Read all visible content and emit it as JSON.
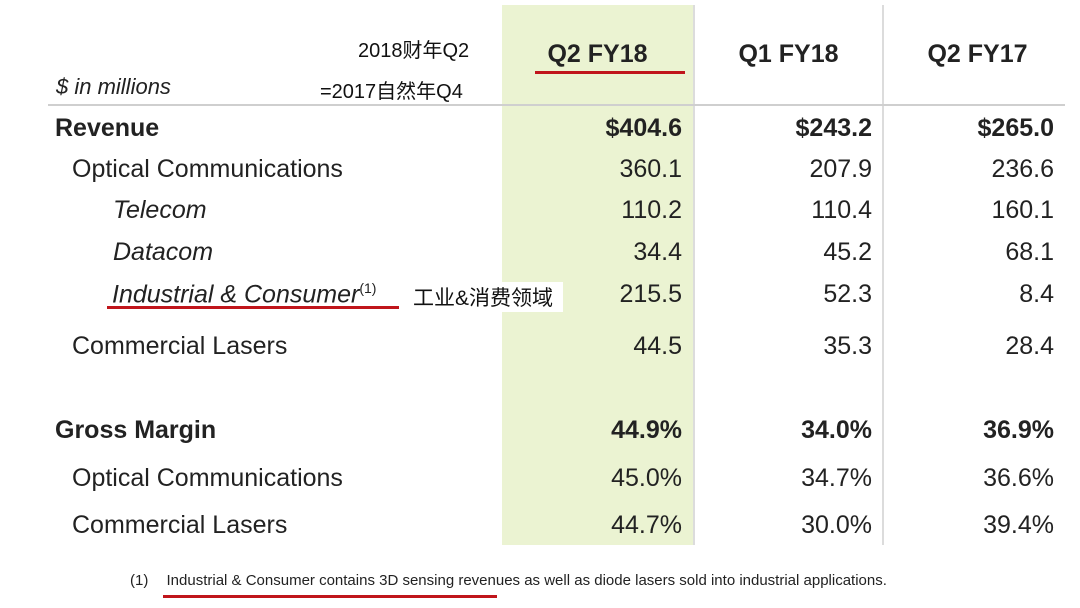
{
  "annotation_top": "2018财年Q2",
  "annotation_bottom": "=2017自然年Q4",
  "unit_label": "$ in millions",
  "columns": [
    "Q2 FY18",
    "Q1 FY18",
    "Q2 FY17"
  ],
  "rows": [
    {
      "label": "Revenue",
      "values": [
        "$404.6",
        "$243.2",
        "$265.0"
      ]
    },
    {
      "label": "Optical Communications",
      "values": [
        "360.1",
        "207.9",
        "236.6"
      ]
    },
    {
      "label": "Telecom",
      "values": [
        "110.2",
        "110.4",
        "160.1"
      ]
    },
    {
      "label": "Datacom",
      "values": [
        "34.4",
        "45.2",
        "68.1"
      ]
    },
    {
      "label": "Industrial & Consumer",
      "sup": "(1)",
      "annotation": "工业&消费领域",
      "values": [
        "215.5",
        "52.3",
        "8.4"
      ]
    },
    {
      "label": "Commercial Lasers",
      "values": [
        "44.5",
        "35.3",
        "28.4"
      ]
    },
    {
      "label": "Gross Margin",
      "values": [
        "44.9%",
        "34.0%",
        "36.9%"
      ]
    },
    {
      "label": "Optical Communications",
      "values": [
        "45.0%",
        "34.7%",
        "36.6%"
      ]
    },
    {
      "label": "Commercial Lasers",
      "values": [
        "44.7%",
        "30.0%",
        "39.4%"
      ]
    }
  ],
  "footnote": {
    "marker": "(1)",
    "text_a": "Industrial & Consumer contains 3D sensing",
    "text_b": " revenues as well as diode lasers sold into industrial applications."
  },
  "colors": {
    "highlight": "#ebf3d2",
    "underline": "#c0151b"
  }
}
